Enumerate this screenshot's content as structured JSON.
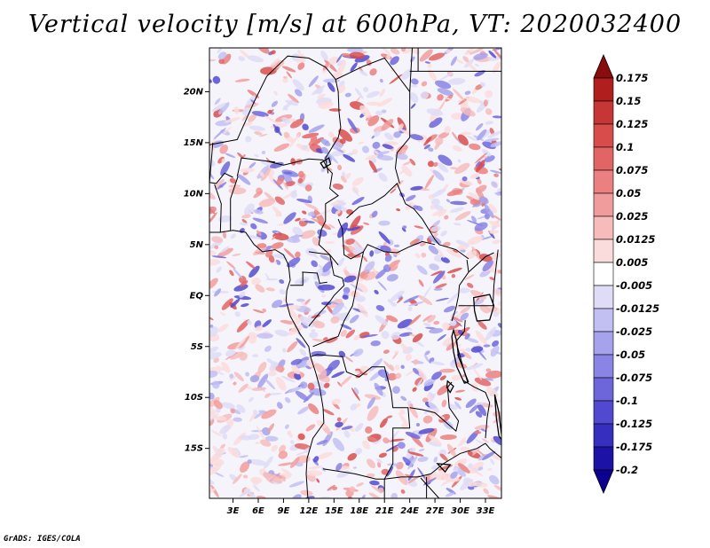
{
  "chart_data": {
    "type": "heatmap",
    "title": "Vertical velocity [m/s] at 600hPa, VT: 2020032400",
    "variable": "Vertical velocity",
    "units": "m/s",
    "level": "600hPa",
    "valid_time": "2020032400",
    "x_ticks": [
      {
        "value": 3,
        "label": "3E"
      },
      {
        "value": 6,
        "label": "6E"
      },
      {
        "value": 9,
        "label": "9E"
      },
      {
        "value": 12,
        "label": "12E"
      },
      {
        "value": 15,
        "label": "15E"
      },
      {
        "value": 18,
        "label": "18E"
      },
      {
        "value": 21,
        "label": "21E"
      },
      {
        "value": 24,
        "label": "24E"
      },
      {
        "value": 27,
        "label": "27E"
      },
      {
        "value": 30,
        "label": "30E"
      },
      {
        "value": 33,
        "label": "33E"
      }
    ],
    "y_ticks": [
      {
        "value": 20,
        "label": "20N"
      },
      {
        "value": 15,
        "label": "15N"
      },
      {
        "value": 10,
        "label": "10N"
      },
      {
        "value": 5,
        "label": "5N"
      },
      {
        "value": 0,
        "label": "EQ"
      },
      {
        "value": -5,
        "label": "5S"
      },
      {
        "value": -10,
        "label": "10S"
      },
      {
        "value": -15,
        "label": "15S"
      }
    ],
    "xlim": [
      0.2,
      34.9
    ],
    "ylim": [
      -19.9,
      24.3
    ],
    "colorbar": {
      "levels": [
        "0.175",
        "0.15",
        "0.125",
        "0.1",
        "0.075",
        "0.05",
        "0.025",
        "0.0125",
        "0.005",
        "-0.005",
        "-0.0125",
        "-0.025",
        "-0.05",
        "-0.075",
        "-0.1",
        "-0.125",
        "-0.175",
        "-0.2"
      ],
      "colors": [
        "#8b0c0c",
        "#b01e1e",
        "#c73636",
        "#d84c4c",
        "#e26565",
        "#ea8080",
        "#f19c9c",
        "#f6bcbc",
        "#fadcdc",
        "#ffffff",
        "#dedcf6",
        "#c2bff2",
        "#a6a2ec",
        "#8a84e4",
        "#6d66da",
        "#514ad0",
        "#352ebf",
        "#1c12a6",
        "#0c0090"
      ]
    }
  },
  "credit": "GrADS: IGES/COLA"
}
